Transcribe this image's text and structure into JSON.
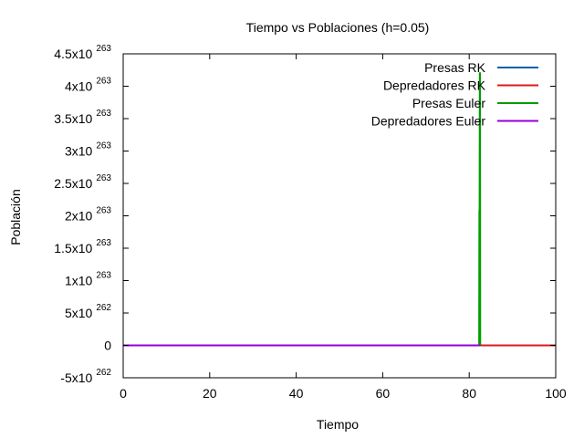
{
  "chart_data": {
    "type": "line",
    "title": "Tiempo vs Poblaciones (h=0.05)",
    "xlabel": "Tiempo",
    "ylabel": "Población",
    "xlim": [
      0,
      100
    ],
    "ylim": [
      -5e+262,
      4.5e+263
    ],
    "grid": false,
    "legend_position": "top-right",
    "x_ticks": [
      {
        "value": 0,
        "label": "0"
      },
      {
        "value": 20,
        "label": "20"
      },
      {
        "value": 40,
        "label": "40"
      },
      {
        "value": 60,
        "label": "60"
      },
      {
        "value": 80,
        "label": "80"
      },
      {
        "value": 100,
        "label": "100"
      }
    ],
    "y_ticks": [
      {
        "value": -5e+262,
        "mantissa": "-5x10",
        "exponent": "262"
      },
      {
        "value": 0,
        "mantissa": "0",
        "exponent": ""
      },
      {
        "value": 5e+262,
        "mantissa": "5x10",
        "exponent": "262"
      },
      {
        "value": 1e+263,
        "mantissa": "1x10",
        "exponent": "263"
      },
      {
        "value": 1.5e+263,
        "mantissa": "1.5x10",
        "exponent": "263"
      },
      {
        "value": 2e+263,
        "mantissa": "2x10",
        "exponent": "263"
      },
      {
        "value": 2.5e+263,
        "mantissa": "2.5x10",
        "exponent": "263"
      },
      {
        "value": 3e+263,
        "mantissa": "3x10",
        "exponent": "263"
      },
      {
        "value": 3.5e+263,
        "mantissa": "3.5x10",
        "exponent": "263"
      },
      {
        "value": 4e+263,
        "mantissa": "4x10",
        "exponent": "263"
      },
      {
        "value": 4.5e+263,
        "mantissa": "4.5x10",
        "exponent": "263"
      }
    ],
    "series": [
      {
        "name": "Presas RK",
        "color": "#0060ad",
        "x": [
          0,
          100
        ],
        "y": [
          0,
          0
        ]
      },
      {
        "name": "Depredadores RK",
        "color": "#dd181f",
        "x": [
          0,
          100
        ],
        "y": [
          0,
          0
        ]
      },
      {
        "name": "Presas Euler",
        "color": "#009e00",
        "x": [
          0,
          82.3,
          82.35,
          82.4,
          82.45,
          82.5,
          82.55,
          82.6
        ],
        "y": [
          0,
          0,
          2.07e+263,
          2.07e+263,
          4.2e+263,
          4.2e+263,
          0,
          0
        ]
      },
      {
        "name": "Depredadores Euler",
        "color": "#9400d3",
        "x": [
          0,
          82.6
        ],
        "y": [
          0,
          0
        ]
      }
    ]
  }
}
